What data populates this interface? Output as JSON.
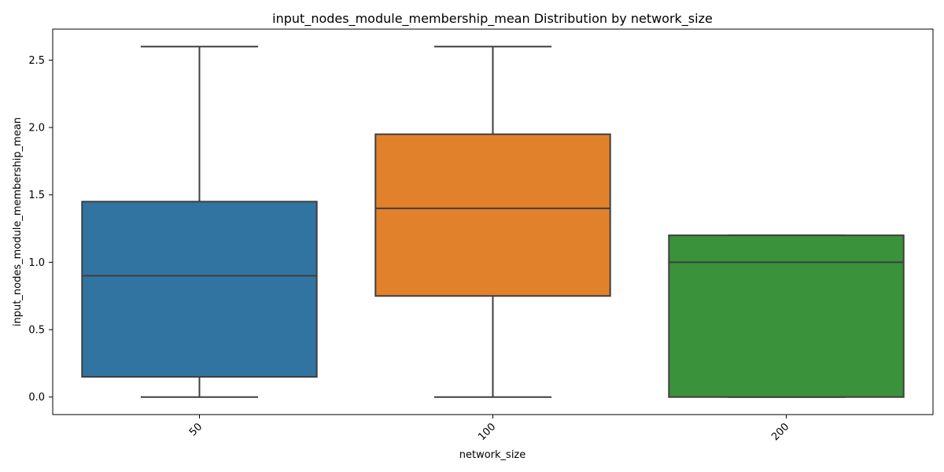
{
  "chart_data": {
    "type": "box",
    "title": "input_nodes_module_membership_mean Distribution by network_size",
    "xlabel": "network_size",
    "ylabel": "input_nodes_module_membership_mean",
    "categories": [
      "50",
      "100",
      "200"
    ],
    "ylim": [
      -0.13,
      2.73
    ],
    "yticks": [
      "0.0",
      "0.5",
      "1.0",
      "1.5",
      "2.0",
      "2.5"
    ],
    "grid": false,
    "boxes": [
      {
        "category": "50",
        "whisker_low": 0.0,
        "q1": 0.15,
        "median": 0.9,
        "q3": 1.45,
        "whisker_high": 2.6,
        "color": "#3274a1"
      },
      {
        "category": "100",
        "whisker_low": 0.0,
        "q1": 0.75,
        "median": 1.4,
        "q3": 1.95,
        "whisker_high": 2.6,
        "color": "#e1812c"
      },
      {
        "category": "200",
        "whisker_low": 0.0,
        "q1": 0.0,
        "median": 1.0,
        "q3": 1.2,
        "whisker_high": 1.2,
        "color": "#3a923a"
      }
    ]
  }
}
